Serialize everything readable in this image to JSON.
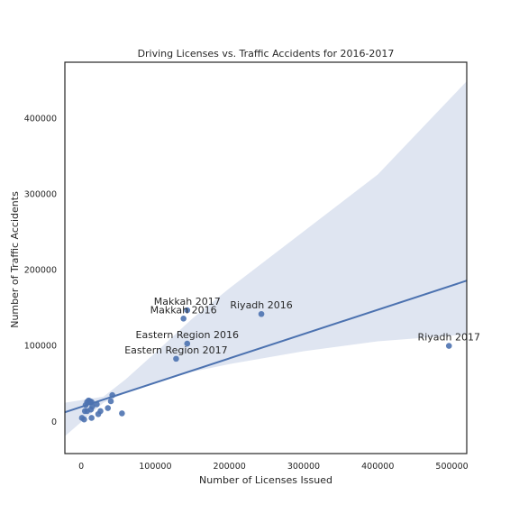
{
  "chart_data": {
    "type": "scatter",
    "title": "Driving Licenses vs. Traffic Accidents for 2016-2017",
    "xlabel": "Number of Licenses Issued",
    "ylabel": "Number of Traffic Accidents",
    "xlim": [
      -22000,
      520000
    ],
    "ylim": [
      -43000,
      473000
    ],
    "xticks": [
      0,
      100000,
      200000,
      300000,
      400000,
      500000
    ],
    "yticks": [
      0,
      100000,
      200000,
      300000,
      400000
    ],
    "xtick_labels": [
      "0",
      "100000",
      "200000",
      "300000",
      "400000",
      "500000"
    ],
    "ytick_labels": [
      "0",
      "100000",
      "200000",
      "300000",
      "400000"
    ],
    "grid": false,
    "colors": {
      "points": "#4c72b0",
      "line": "#4c72b0",
      "band": "#dfe5f1",
      "frame": "#262626"
    },
    "points": [
      {
        "x": 143000,
        "y": 146000
      },
      {
        "x": 138000,
        "y": 135000
      },
      {
        "x": 243000,
        "y": 141000
      },
      {
        "x": 143000,
        "y": 102000
      },
      {
        "x": 128000,
        "y": 82000
      },
      {
        "x": 496000,
        "y": 99000
      },
      {
        "x": 8000,
        "y": 25000
      },
      {
        "x": 10000,
        "y": 27000
      },
      {
        "x": 12000,
        "y": 26000
      },
      {
        "x": 14000,
        "y": 25000
      },
      {
        "x": 6000,
        "y": 21000
      },
      {
        "x": 15000,
        "y": 19000
      },
      {
        "x": 21000,
        "y": 22000
      },
      {
        "x": 13000,
        "y": 15000
      },
      {
        "x": 5000,
        "y": 13000
      },
      {
        "x": 8000,
        "y": 13000
      },
      {
        "x": 26000,
        "y": 13000
      },
      {
        "x": 23000,
        "y": 9000
      },
      {
        "x": 36000,
        "y": 17000
      },
      {
        "x": 40000,
        "y": 26000
      },
      {
        "x": 42000,
        "y": 34000
      },
      {
        "x": 55000,
        "y": 10000
      },
      {
        "x": 1000,
        "y": 4000
      },
      {
        "x": 4000,
        "y": 2000
      },
      {
        "x": 14000,
        "y": 4000
      }
    ],
    "annotations": [
      {
        "text": "Makkah 2017",
        "x": 143000,
        "y": 146000
      },
      {
        "text": "Makkah 2016",
        "x": 138000,
        "y": 135000
      },
      {
        "text": "Riyadh 2016",
        "x": 243000,
        "y": 141000
      },
      {
        "text": "Eastern Region 2016",
        "x": 143000,
        "y": 102000
      },
      {
        "text": "Eastern Region 2017",
        "x": 128000,
        "y": 82000
      },
      {
        "text": "Riyadh 2017",
        "x": 496000,
        "y": 99000
      }
    ],
    "regression": {
      "line": [
        [
          -22000,
          11500
        ],
        [
          520000,
          185000
        ]
      ],
      "ci_upper": [
        [
          -22000,
          24000
        ],
        [
          30000,
          32000
        ],
        [
          60000,
          55000
        ],
        [
          100000,
          90000
        ],
        [
          150000,
          135000
        ],
        [
          200000,
          175000
        ],
        [
          300000,
          250000
        ],
        [
          400000,
          325000
        ],
        [
          520000,
          448000
        ]
      ],
      "ci_lower": [
        [
          -22000,
          -20000
        ],
        [
          30000,
          24000
        ],
        [
          60000,
          37000
        ],
        [
          100000,
          50000
        ],
        [
          150000,
          65000
        ],
        [
          200000,
          75000
        ],
        [
          300000,
          92000
        ],
        [
          400000,
          105000
        ],
        [
          520000,
          114000
        ]
      ]
    }
  }
}
